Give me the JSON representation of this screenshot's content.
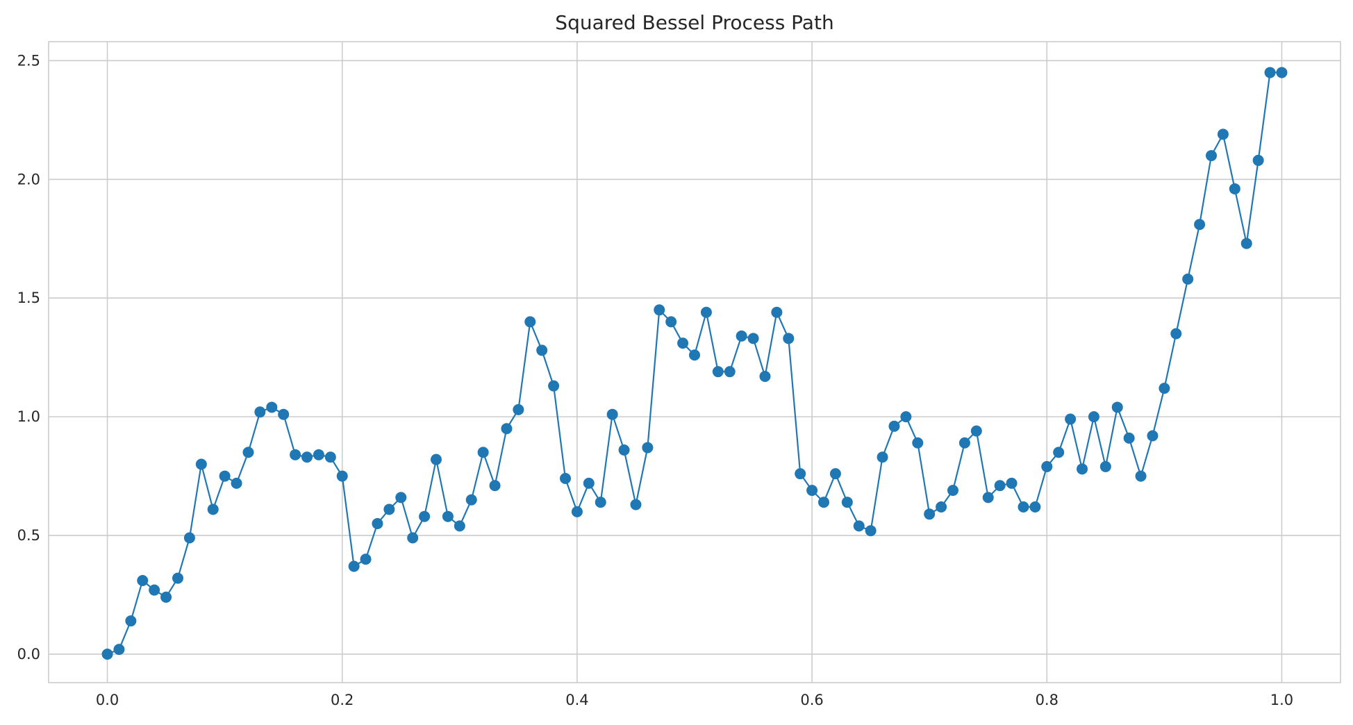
{
  "colors": {
    "series": "#1f77b4",
    "grid": "#cccccc",
    "text": "#262626"
  },
  "chart_data": {
    "type": "line",
    "title": "Squared Bessel Process Path",
    "xlabel": "",
    "ylabel": "",
    "xlim": [
      -0.05,
      1.05
    ],
    "ylim": [
      -0.12,
      2.58
    ],
    "x_ticks": [
      0.0,
      0.2,
      0.4,
      0.6,
      0.8,
      1.0
    ],
    "x_tick_labels": [
      "0.0",
      "0.2",
      "0.4",
      "0.6",
      "0.8",
      "1.0"
    ],
    "y_ticks": [
      0.0,
      0.5,
      1.0,
      1.5,
      2.0,
      2.5
    ],
    "y_tick_labels": [
      "0.0",
      "0.5",
      "1.0",
      "1.5",
      "2.0",
      "2.5"
    ],
    "grid": true,
    "markers": true,
    "series": [
      {
        "x": [
          0.0,
          0.01,
          0.02,
          0.03,
          0.04,
          0.05,
          0.06,
          0.07,
          0.08,
          0.09,
          0.1,
          0.11,
          0.12,
          0.13,
          0.14,
          0.15,
          0.16,
          0.17,
          0.18,
          0.19,
          0.2,
          0.21,
          0.22,
          0.23,
          0.24,
          0.25,
          0.26,
          0.27,
          0.28,
          0.29,
          0.3,
          0.31,
          0.32,
          0.33,
          0.34,
          0.35,
          0.36,
          0.37,
          0.38,
          0.39,
          0.4,
          0.41,
          0.42,
          0.43,
          0.44,
          0.45,
          0.46,
          0.47,
          0.48,
          0.49,
          0.5,
          0.51,
          0.52,
          0.53,
          0.54,
          0.55,
          0.56,
          0.57,
          0.58,
          0.59,
          0.6,
          0.61,
          0.62,
          0.63,
          0.64,
          0.65,
          0.66,
          0.67,
          0.68,
          0.69,
          0.7,
          0.71,
          0.72,
          0.73,
          0.74,
          0.75,
          0.76,
          0.77,
          0.78,
          0.79,
          0.8,
          0.81,
          0.82,
          0.83,
          0.84,
          0.85,
          0.86,
          0.87,
          0.88,
          0.89,
          0.9,
          0.91,
          0.92,
          0.93,
          0.94,
          0.95,
          0.96,
          0.97,
          0.98,
          0.99,
          1.0
        ],
        "values": [
          0.0,
          0.02,
          0.14,
          0.31,
          0.27,
          0.24,
          0.32,
          0.49,
          0.8,
          0.61,
          0.75,
          0.72,
          0.85,
          1.02,
          1.04,
          1.01,
          0.84,
          0.83,
          0.84,
          0.83,
          0.75,
          0.37,
          0.4,
          0.55,
          0.61,
          0.66,
          0.49,
          0.58,
          0.82,
          0.58,
          0.54,
          0.65,
          0.85,
          0.71,
          0.95,
          1.03,
          1.4,
          1.28,
          1.13,
          0.74,
          0.6,
          0.72,
          0.64,
          1.01,
          0.86,
          0.63,
          0.87,
          1.45,
          1.4,
          1.31,
          1.26,
          1.44,
          1.19,
          1.19,
          1.34,
          1.33,
          1.17,
          1.44,
          1.33,
          0.76,
          0.69,
          0.64,
          0.76,
          0.64,
          0.54,
          0.52,
          0.83,
          0.96,
          1.0,
          0.89,
          0.59,
          0.62,
          0.69,
          0.89,
          0.94,
          0.66,
          0.71,
          0.72,
          0.62,
          0.62,
          0.79,
          0.85,
          0.99,
          0.78,
          1.0,
          0.79,
          1.04,
          0.91,
          0.75,
          0.92,
          1.12,
          1.35,
          1.58,
          1.81,
          2.1,
          2.19,
          1.96,
          1.73,
          2.08,
          2.45,
          2.45
        ]
      }
    ]
  }
}
